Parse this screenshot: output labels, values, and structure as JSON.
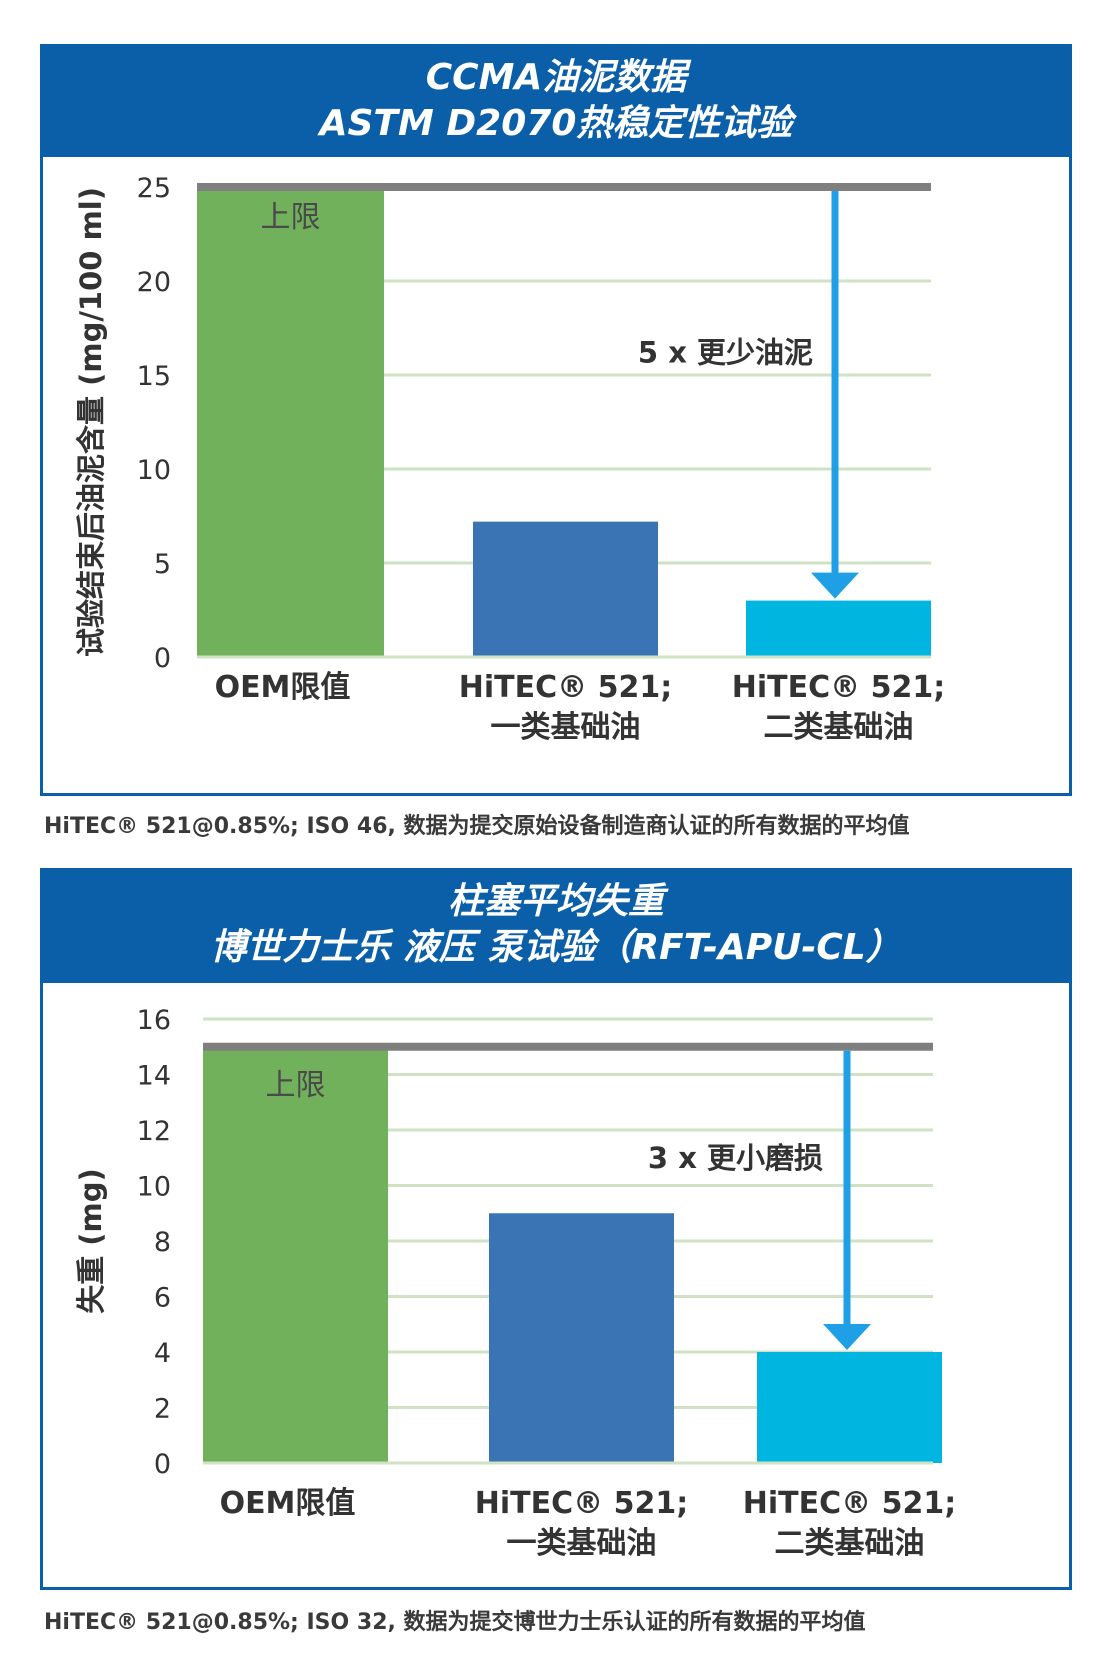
{
  "colors": {
    "frame": "#0b5fa8",
    "grid": "#cfe3c4",
    "limit_line": "#7f7f7f",
    "arrow": "#1e9fe6",
    "bar_oem": "#72b15c",
    "bar_group1": "#3b74b5",
    "bar_group2": "#00b5df"
  },
  "chart_data": [
    {
      "type": "bar",
      "title": "CCMA油泥数据",
      "subtitle": "ASTM D2070热稳定性试验",
      "ylabel": "试验结束后油泥含量 (mg/100 ml)",
      "xlabel": "",
      "ylim": [
        0,
        25
      ],
      "yticks": [
        "0",
        "5",
        "10",
        "15",
        "20",
        "25"
      ],
      "grid": true,
      "categories": [
        {
          "line1": "OEM限值",
          "line2": ""
        },
        {
          "line1": "HiTEC® 521;",
          "line2": "一类基础油"
        },
        {
          "line1": "HiTEC® 521;",
          "line2": "二类基础油"
        }
      ],
      "values": [
        25,
        7.2,
        3
      ],
      "limit_value": 25,
      "limit_label": "上限",
      "annotation": "5 x 更少油泥",
      "footnote": "HiTEC® 521@0.85%; ISO 46, 数据为提交原始设备制造商认证的所有数据的平均值"
    },
    {
      "type": "bar",
      "title": "柱塞平均失重",
      "subtitle": "博世力士乐 液压 泵试验（RFT-APU-CL）",
      "ylabel": "失重 (mg)",
      "xlabel": "",
      "ylim": [
        0,
        16
      ],
      "yticks": [
        "0",
        "2",
        "4",
        "6",
        "8",
        "10",
        "12",
        "14",
        "16"
      ],
      "grid": true,
      "categories": [
        {
          "line1": "OEM限值",
          "line2": ""
        },
        {
          "line1": "HiTEC® 521;",
          "line2": "一类基础油"
        },
        {
          "line1": "HiTEC® 521;",
          "line2": "二类基础油"
        }
      ],
      "values": [
        15,
        9,
        4
      ],
      "limit_value": 15,
      "limit_label": "上限",
      "annotation": "3 x 更小磨损",
      "footnote": "HiTEC® 521@0.85%; ISO 32, 数据为提交博世力士乐认证的所有数据的平均值"
    }
  ]
}
